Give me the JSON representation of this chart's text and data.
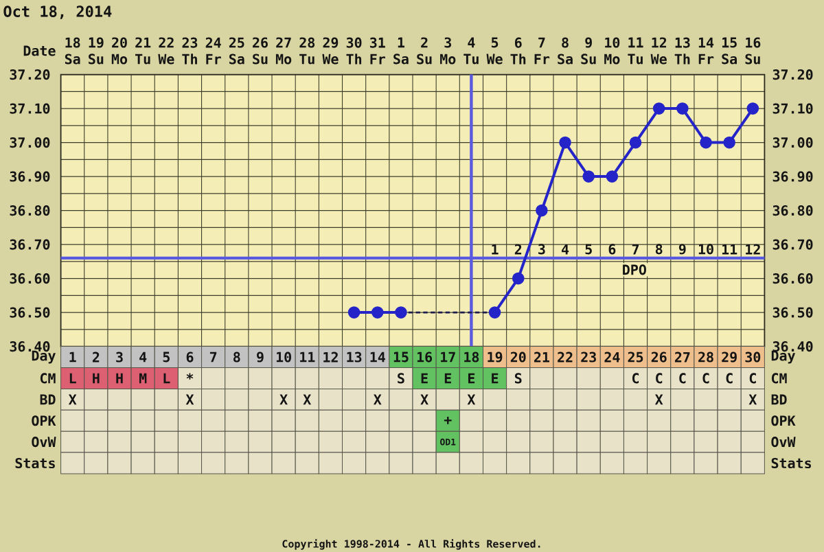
{
  "chart_data": [
    {
      "type": "line",
      "title": "Oct 18, 2014",
      "xlabel": "Date",
      "categories": [
        "18 Sa",
        "19 Su",
        "20 Mo",
        "21 Tu",
        "22 We",
        "23 Th",
        "24 Fr",
        "25 Sa",
        "26 Su",
        "27 Mo",
        "28 Tu",
        "29 We",
        "30 Th",
        "31 Fr",
        "1 Sa",
        "2 Su",
        "3 Mo",
        "4 Tu",
        "5 We",
        "6 Th",
        "7 Fr",
        "8 Sa",
        "9 Su",
        "10 Mo",
        "11 Tu",
        "12 We",
        "13 Th",
        "14 Fr",
        "15 Sa",
        "16 Su"
      ],
      "ylim": [
        36.4,
        37.2
      ],
      "yticks": [
        {
          "value": 36.4,
          "label": "36.40"
        },
        {
          "value": 36.5,
          "label": "36.50"
        },
        {
          "value": 36.6,
          "label": "36.60"
        },
        {
          "value": 36.7,
          "label": "36.70"
        },
        {
          "value": 36.8,
          "label": "36.80"
        },
        {
          "value": 36.9,
          "label": "36.90"
        },
        {
          "value": 37.0,
          "label": "37.00"
        },
        {
          "value": 37.1,
          "label": "37.10"
        },
        {
          "value": 37.2,
          "label": "37.20"
        }
      ],
      "y2lim": [
        36.4,
        37.2
      ],
      "y2ticks": [
        {
          "value": 36.4,
          "label": "36.40"
        },
        {
          "value": 36.5,
          "label": "36.50"
        },
        {
          "value": 36.6,
          "label": "36.60"
        },
        {
          "value": 36.7,
          "label": "36.70"
        },
        {
          "value": 36.8,
          "label": "36.80"
        },
        {
          "value": 36.9,
          "label": "36.90"
        },
        {
          "value": 37.0,
          "label": "37.00"
        },
        {
          "value": 37.1,
          "label": "37.10"
        },
        {
          "value": 37.2,
          "label": "37.20"
        }
      ],
      "grid": true,
      "series": [
        {
          "color": "#2424c8",
          "marker": "circle",
          "line_style": "solid",
          "values": [
            null,
            null,
            null,
            null,
            null,
            null,
            null,
            null,
            null,
            null,
            null,
            null,
            36.5,
            36.5,
            36.5,
            null,
            null,
            null,
            36.5,
            36.6,
            36.8,
            37.0,
            36.9,
            36.9,
            37.0,
            37.1,
            37.1,
            37.0,
            37.0,
            37.1
          ]
        },
        {
          "type": "line",
          "x": [
            "1 Sa",
            "5 We"
          ],
          "values": [
            36.5,
            36.5
          ],
          "color": "#1c1c50",
          "marker": "none",
          "line_style": "dashed"
        }
      ],
      "ref_lines": [
        {
          "axis": "y",
          "value": 36.66,
          "label": "DPO",
          "color": "#5a5ae0"
        },
        {
          "axis": "x",
          "value": "4 Tu",
          "color": "#5a5ae0"
        }
      ],
      "annotations": [
        {
          "text": "1",
          "x": "5 We",
          "y": 36.66
        },
        {
          "text": "2",
          "x": "6 Th",
          "y": 36.66
        },
        {
          "text": "3",
          "x": "7 Fr",
          "y": 36.66
        },
        {
          "text": "4",
          "x": "8 Sa",
          "y": 36.66
        },
        {
          "text": "5",
          "x": "9 Su",
          "y": 36.66
        },
        {
          "text": "6",
          "x": "10 Mo",
          "y": 36.66
        },
        {
          "text": "7",
          "x": "11 Tu",
          "y": 36.66
        },
        {
          "text": "8",
          "x": "12 We",
          "y": 36.66
        },
        {
          "text": "9",
          "x": "13 Th",
          "y": 36.66
        },
        {
          "text": "10",
          "x": "14 Fr",
          "y": 36.66
        },
        {
          "text": "11",
          "x": "15 Sa",
          "y": 36.66
        },
        {
          "text": "12",
          "x": "16 Su",
          "y": 36.66
        }
      ]
    },
    {
      "type": "heatmap",
      "categories": [
        null,
        null,
        null,
        null,
        null,
        null,
        null,
        null,
        null,
        null,
        null,
        null,
        null,
        null,
        null,
        null,
        null,
        null,
        null,
        null,
        null,
        null,
        null,
        null,
        null,
        null,
        null,
        null,
        null,
        null
      ],
      "y_categories": [
        "Day",
        "CM",
        "BD",
        "OPK",
        "OvW",
        "Stats"
      ],
      "y2_categories": [
        "Day",
        "CM",
        "BD",
        "OPK",
        "OvW",
        "Stats"
      ],
      "cells": [
        [
          null,
          null,
          null,
          null,
          null,
          null,
          null,
          null,
          null,
          null,
          null,
          null,
          null,
          null,
          null,
          null,
          null,
          null,
          null,
          null,
          null,
          null,
          null,
          null,
          null,
          null,
          null,
          null,
          null,
          null
        ],
        [
          null,
          null,
          null,
          null,
          null,
          null,
          null,
          null,
          null,
          null,
          null,
          null,
          null,
          null,
          null,
          null,
          null,
          null,
          null,
          null,
          null,
          null,
          null,
          null,
          null,
          null,
          null,
          null,
          null,
          null
        ],
        [
          null,
          null,
          null,
          null,
          null,
          null,
          null,
          null,
          null,
          null,
          null,
          null,
          null,
          null,
          null,
          null,
          null,
          null,
          null,
          null,
          null,
          null,
          null,
          null,
          null,
          null,
          null,
          null,
          null,
          null
        ],
        [
          null,
          null,
          null,
          null,
          null,
          null,
          null,
          null,
          null,
          null,
          null,
          null,
          null,
          null,
          null,
          null,
          null,
          null,
          null,
          null,
          null,
          null,
          null,
          null,
          null,
          null,
          null,
          null,
          null,
          null
        ],
        [
          null,
          null,
          null,
          null,
          null,
          null,
          null,
          null,
          null,
          null,
          null,
          null,
          null,
          null,
          null,
          null,
          null,
          null,
          null,
          null,
          null,
          null,
          null,
          null,
          null,
          null,
          null,
          null,
          null,
          null
        ],
        [
          null,
          null,
          null,
          null,
          null,
          null,
          null,
          null,
          null,
          null,
          null,
          null,
          null,
          null,
          null,
          null,
          null,
          null,
          null,
          null,
          null,
          null,
          null,
          null,
          null,
          null,
          null,
          null,
          null,
          null
        ]
      ],
      "cell_labels": [
        [
          "1",
          "2",
          "3",
          "4",
          "5",
          "6",
          "7",
          "8",
          "9",
          "10",
          "11",
          "12",
          "13",
          "14",
          "15",
          "16",
          "17",
          "18",
          "19",
          "20",
          "21",
          "22",
          "23",
          "24",
          "25",
          "26",
          "27",
          "28",
          "29",
          "30"
        ],
        [
          "L",
          "H",
          "H",
          "M",
          "L",
          "*",
          null,
          null,
          null,
          null,
          null,
          null,
          null,
          null,
          "S",
          "E",
          "E",
          "E",
          "E",
          "S",
          null,
          null,
          null,
          null,
          "C",
          "C",
          "C",
          "C",
          "C",
          "C"
        ],
        [
          "X",
          null,
          null,
          null,
          null,
          "X",
          null,
          null,
          null,
          "X",
          "X",
          null,
          null,
          "X",
          null,
          "X",
          null,
          "X",
          null,
          null,
          null,
          null,
          null,
          null,
          null,
          "X",
          null,
          null,
          null,
          "X"
        ],
        [
          null,
          null,
          null,
          null,
          null,
          null,
          null,
          null,
          null,
          null,
          null,
          null,
          null,
          null,
          null,
          null,
          "+",
          null,
          null,
          null,
          null,
          null,
          null,
          null,
          null,
          null,
          null,
          null,
          null,
          null
        ],
        [
          null,
          null,
          null,
          null,
          null,
          null,
          null,
          null,
          null,
          null,
          null,
          null,
          null,
          null,
          null,
          null,
          "OD1",
          null,
          null,
          null,
          null,
          null,
          null,
          null,
          null,
          null,
          null,
          null,
          null,
          null
        ],
        [
          null,
          null,
          null,
          null,
          null,
          null,
          null,
          null,
          null,
          null,
          null,
          null,
          null,
          null,
          null,
          null,
          null,
          null,
          null,
          null,
          null,
          null,
          null,
          null,
          null,
          null,
          null,
          null,
          null,
          null
        ]
      ],
      "colors": [
        [
          "#c2c2c2",
          "#c2c2c2",
          "#c2c2c2",
          "#c2c2c2",
          "#c2c2c2",
          "#c2c2c2",
          "#c2c2c2",
          "#c2c2c2",
          "#c2c2c2",
          "#c2c2c2",
          "#c2c2c2",
          "#c2c2c2",
          "#c2c2c2",
          "#c2c2c2",
          "#62c262",
          "#62c262",
          "#62c262",
          "#62c262",
          "#eebf8c",
          "#eebf8c",
          "#eebf8c",
          "#eebf8c",
          "#eebf8c",
          "#eebf8c",
          "#eebf8c",
          "#eebf8c",
          "#eebf8c",
          "#eebf8c",
          "#eebf8c",
          "#eebf8c"
        ],
        [
          "#dc6072",
          "#dc6072",
          "#dc6072",
          "#dc6072",
          "#dc6072",
          null,
          null,
          null,
          null,
          null,
          null,
          null,
          null,
          null,
          null,
          "#62c262",
          "#62c262",
          "#62c262",
          "#62c262",
          null,
          null,
          null,
          null,
          null,
          null,
          null,
          null,
          null,
          null,
          null
        ],
        [
          null,
          null,
          null,
          null,
          null,
          null,
          null,
          null,
          null,
          null,
          null,
          null,
          null,
          null,
          null,
          null,
          null,
          null,
          null,
          null,
          null,
          null,
          null,
          null,
          null,
          null,
          null,
          null,
          null,
          null
        ],
        [
          null,
          null,
          null,
          null,
          null,
          null,
          null,
          null,
          null,
          null,
          null,
          null,
          null,
          null,
          null,
          null,
          "#62c262",
          null,
          null,
          null,
          null,
          null,
          null,
          null,
          null,
          null,
          null,
          null,
          null,
          null
        ],
        [
          null,
          null,
          null,
          null,
          null,
          null,
          null,
          null,
          null,
          null,
          null,
          null,
          null,
          null,
          null,
          null,
          "#62c262",
          null,
          null,
          null,
          null,
          null,
          null,
          null,
          null,
          null,
          null,
          null,
          null,
          null
        ],
        [
          null,
          null,
          null,
          null,
          null,
          null,
          null,
          null,
          null,
          null,
          null,
          null,
          null,
          null,
          null,
          null,
          null,
          null,
          null,
          null,
          null,
          null,
          null,
          null,
          null,
          null,
          null,
          null,
          null,
          null
        ]
      ],
      "annotations": [
        "Copyright 1998-2014 - All Rights Reserved."
      ]
    }
  ]
}
